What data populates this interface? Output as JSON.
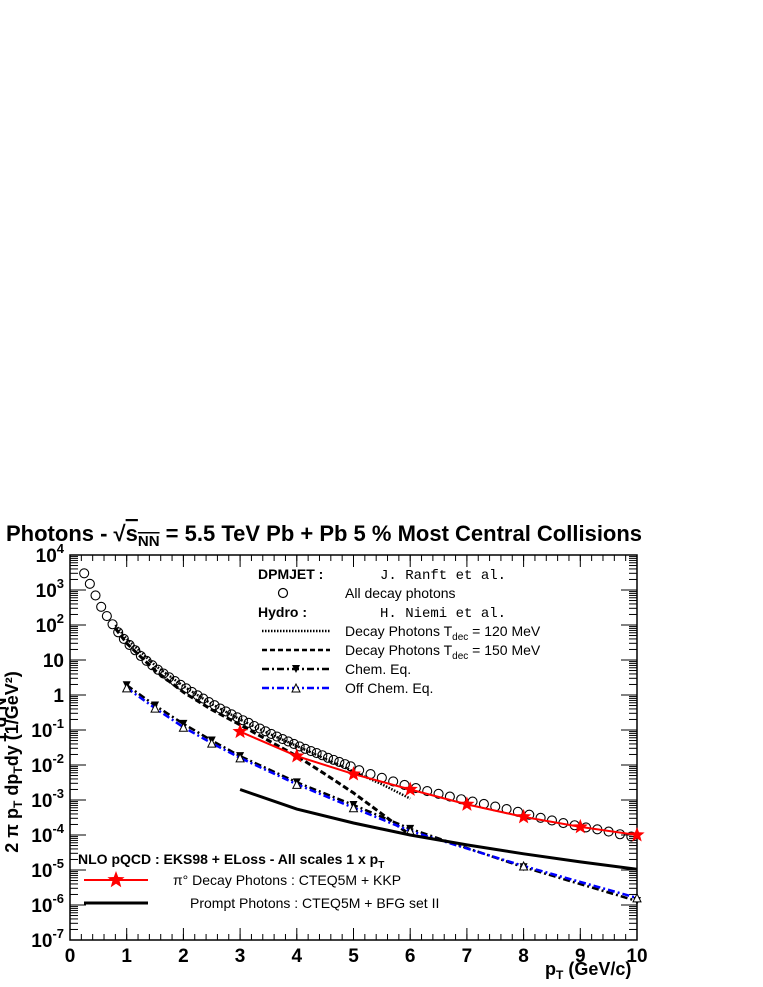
{
  "title": {
    "prefix": "Photons - ",
    "sqrt_s": "s",
    "sqrt_sub": "NN",
    "suffix": " = 5.5 TeV Pb + Pb 5 % Most Central Collisions"
  },
  "legend": {
    "dpmjet_header": "DPMJET :",
    "dpmjet_ref": "J. Ranft et al.",
    "all_decay": "All decay photons",
    "hydro_header": "Hydro :",
    "hydro_ref": "H. Niemi et al.",
    "dec120_a": "Decay Photons  T",
    "dec120_sub": "dec",
    "dec120_b": " = 120 MeV",
    "dec150_a": "Decay Photons  T",
    "dec150_sub": "dec",
    "dec150_b": " = 150 MeV",
    "chem_eq": "Chem. Eq.",
    "off_chem_eq": "Off Chem. Eq.",
    "nlo_header_a": "NLO pQCD : EKS98 + ELoss - All scales 1 x p",
    "nlo_header_sub": "T",
    "pi0": "π° Decay Photons : CTEQ5M + KKP",
    "prompt": "Prompt Photons : CTEQ5M + BFG set II"
  },
  "colors": {
    "pi0": "#ff0000",
    "off_chem": "#0000ff",
    "black": "#000000"
  },
  "chart_data": {
    "type": "line",
    "title": "Photons - √sNN = 5.5 TeV Pb + Pb 5 % Most Central Collisions",
    "xlabel": "pT (GeV/c)",
    "ylabel": "1/(2π pT) d²N/(dpT dy) (1/GeV²)",
    "xlim": [
      0,
      10
    ],
    "ylim": [
      1e-07,
      10000.0
    ],
    "y_scale": "log",
    "x_ticks": [
      "0",
      "1",
      "2",
      "3",
      "4",
      "5",
      "6",
      "7",
      "8",
      "9",
      "10"
    ],
    "y_ticks": [
      "10^-7",
      "10^-6",
      "10^-5",
      "10^-4",
      "10^-3",
      "10^-2",
      "10^-1",
      "1",
      "10",
      "10^2",
      "10^3",
      "10^4"
    ],
    "series": [
      {
        "name": "All decay photons",
        "style": "open-circles",
        "x": [
          0.25,
          0.35,
          0.45,
          0.55,
          0.65,
          0.75,
          0.85,
          0.95,
          1.05,
          1.15,
          1.25,
          1.35,
          1.45,
          1.55,
          1.65,
          1.75,
          1.85,
          1.95,
          2.05,
          2.15,
          2.25,
          2.35,
          2.45,
          2.55,
          2.65,
          2.75,
          2.85,
          2.95,
          3.05,
          3.15,
          3.25,
          3.35,
          3.45,
          3.55,
          3.65,
          3.75,
          3.85,
          3.95,
          4.05,
          4.15,
          4.25,
          4.35,
          4.45,
          4.55,
          4.65,
          4.75,
          4.85,
          4.95,
          5.1,
          5.3,
          5.5,
          5.7,
          5.9,
          6.1,
          6.3,
          6.5,
          6.7,
          6.9,
          7.1,
          7.3,
          7.5,
          7.7,
          7.9,
          8.1,
          8.3,
          8.5,
          8.7,
          8.9,
          9.1,
          9.3,
          9.5,
          9.7,
          9.9
        ],
        "y": [
          3000,
          1500,
          700,
          330,
          180,
          105,
          62,
          40,
          27,
          19,
          13,
          9.5,
          7.1,
          5.3,
          4.1,
          3.2,
          2.5,
          1.95,
          1.55,
          1.22,
          0.98,
          0.79,
          0.63,
          0.51,
          0.41,
          0.34,
          0.28,
          0.23,
          0.19,
          0.16,
          0.13,
          0.11,
          0.092,
          0.077,
          0.065,
          0.055,
          0.047,
          0.04,
          0.034,
          0.029,
          0.025,
          0.022,
          0.019,
          0.016,
          0.014,
          0.0122,
          0.0106,
          0.0092,
          0.0071,
          0.0055,
          0.0043,
          0.0034,
          0.0027,
          0.0022,
          0.0018,
          0.0015,
          0.00125,
          0.00105,
          0.0009,
          0.00077,
          0.00065,
          0.00055,
          0.00046,
          0.00038,
          0.00031,
          0.00026,
          0.00022,
          0.00019,
          0.000165,
          0.000145,
          0.000125,
          0.000105,
          9e-05
        ]
      },
      {
        "name": "Decay Photons Tdec = 120 MeV",
        "style": "dotted",
        "x": [
          0.8,
          1,
          1.5,
          2,
          2.5,
          3,
          3.5,
          4,
          4.5,
          5,
          5.5,
          6
        ],
        "y": [
          100,
          40,
          7,
          1.8,
          0.55,
          0.2,
          0.08,
          0.035,
          0.015,
          0.0065,
          0.0028,
          0.0011
        ]
      },
      {
        "name": "Decay Photons Tdec = 150 MeV",
        "style": "dashed",
        "x": [
          0.8,
          1,
          1.5,
          2,
          2.5,
          3,
          3.5,
          4,
          4.5,
          5,
          5.5,
          6
        ],
        "y": [
          80,
          30,
          5,
          1.2,
          0.38,
          0.14,
          0.05,
          0.018,
          0.0055,
          0.0016,
          0.0004,
          0.0001
        ]
      },
      {
        "name": "Chem. Eq.",
        "style": "dash-dot-markers",
        "x": [
          1,
          1.5,
          2,
          2.5,
          3,
          4,
          5,
          6,
          8,
          10
        ],
        "y": [
          1.9,
          0.5,
          0.15,
          0.05,
          0.018,
          0.0032,
          0.00072,
          0.00015,
          1.2e-05,
          1.3e-06
        ]
      },
      {
        "name": "Off Chem. Eq.",
        "style": "dash-dot-open-triangles",
        "x": [
          1,
          1.5,
          2,
          2.5,
          3,
          4,
          5,
          6,
          8,
          10
        ],
        "y": [
          1.6,
          0.42,
          0.12,
          0.042,
          0.016,
          0.0028,
          0.0006,
          0.00013,
          1.3e-05,
          1.6e-06
        ]
      },
      {
        "name": "π° Decay Photons : CTEQ5M + KKP",
        "style": "solid-stars",
        "x": [
          3,
          4,
          5,
          6,
          7,
          8,
          9,
          10
        ],
        "y": [
          0.09,
          0.018,
          0.0055,
          0.002,
          0.00075,
          0.00033,
          0.00017,
          0.0001
        ]
      },
      {
        "name": "Prompt Photons : CTEQ5M + BFG set II",
        "style": "solid",
        "x": [
          3,
          4,
          5,
          6,
          7,
          8,
          9,
          10
        ],
        "y": [
          0.002,
          0.00055,
          0.00022,
          0.0001,
          5.2e-05,
          2.9e-05,
          1.7e-05,
          1.05e-05
        ]
      }
    ]
  }
}
